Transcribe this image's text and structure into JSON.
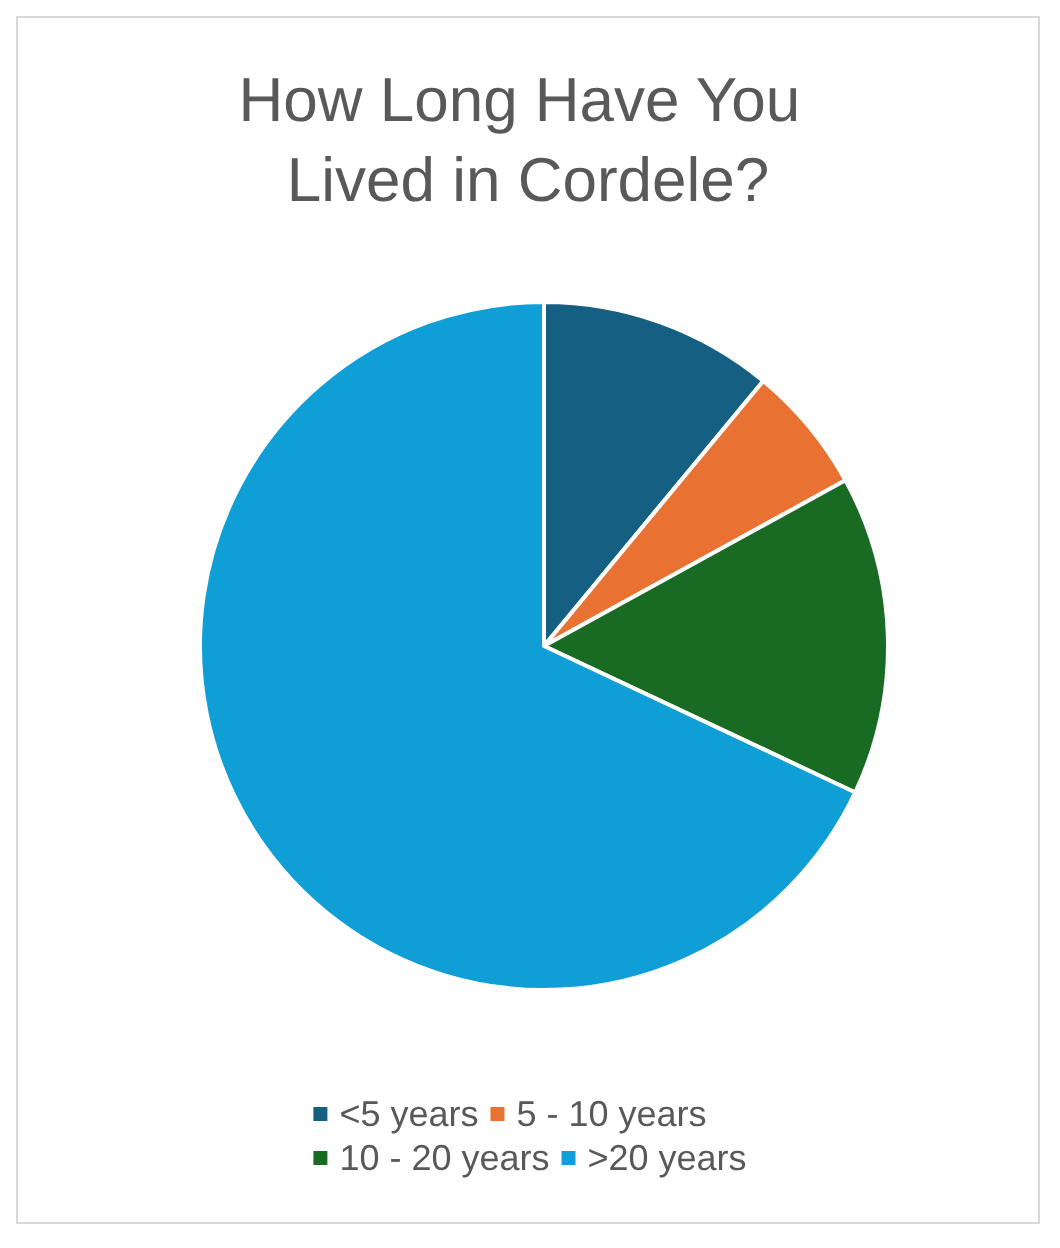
{
  "chart_data": {
    "type": "pie",
    "title": "How Long Have You Lived in Cordele?",
    "categories": [
      "<5 years",
      "5 - 10 years",
      "10 - 20 years",
      ">20 years"
    ],
    "values": [
      11,
      6,
      15,
      68
    ],
    "colors": [
      "#156082",
      "#e97132",
      "#196b24",
      "#0f9ed5"
    ],
    "legend": "bottom"
  }
}
